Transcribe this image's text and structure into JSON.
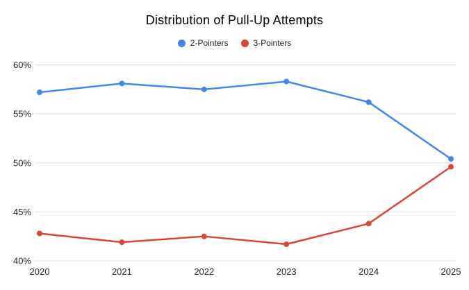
{
  "chart_data": {
    "type": "line",
    "title": "Distribution of Pull-Up Attempts",
    "categories": [
      "2020",
      "2021",
      "2022",
      "2023",
      "2024",
      "2025"
    ],
    "series": [
      {
        "name": "2-Pointers",
        "color": "#4285f4",
        "values": [
          57.2,
          58.1,
          57.5,
          58.3,
          56.2,
          50.4
        ]
      },
      {
        "name": "3-Pointers",
        "color": "#db4437",
        "values": [
          42.8,
          41.9,
          42.5,
          41.7,
          43.8,
          49.6
        ]
      }
    ],
    "xlabel": "",
    "ylabel": "",
    "ylim": [
      40,
      60
    ],
    "ytick_step": 5,
    "ytick_suffix": "%",
    "ytick_labels": [
      "40%",
      "45%",
      "50%",
      "55%",
      "60%"
    ],
    "grid": true,
    "legend_position": "top",
    "background_color": "#ffffff",
    "gridline_color": "#e0e0e0",
    "axis_label_color": "#222222",
    "legend_label_color": "#222222",
    "title_color": "#000000"
  }
}
